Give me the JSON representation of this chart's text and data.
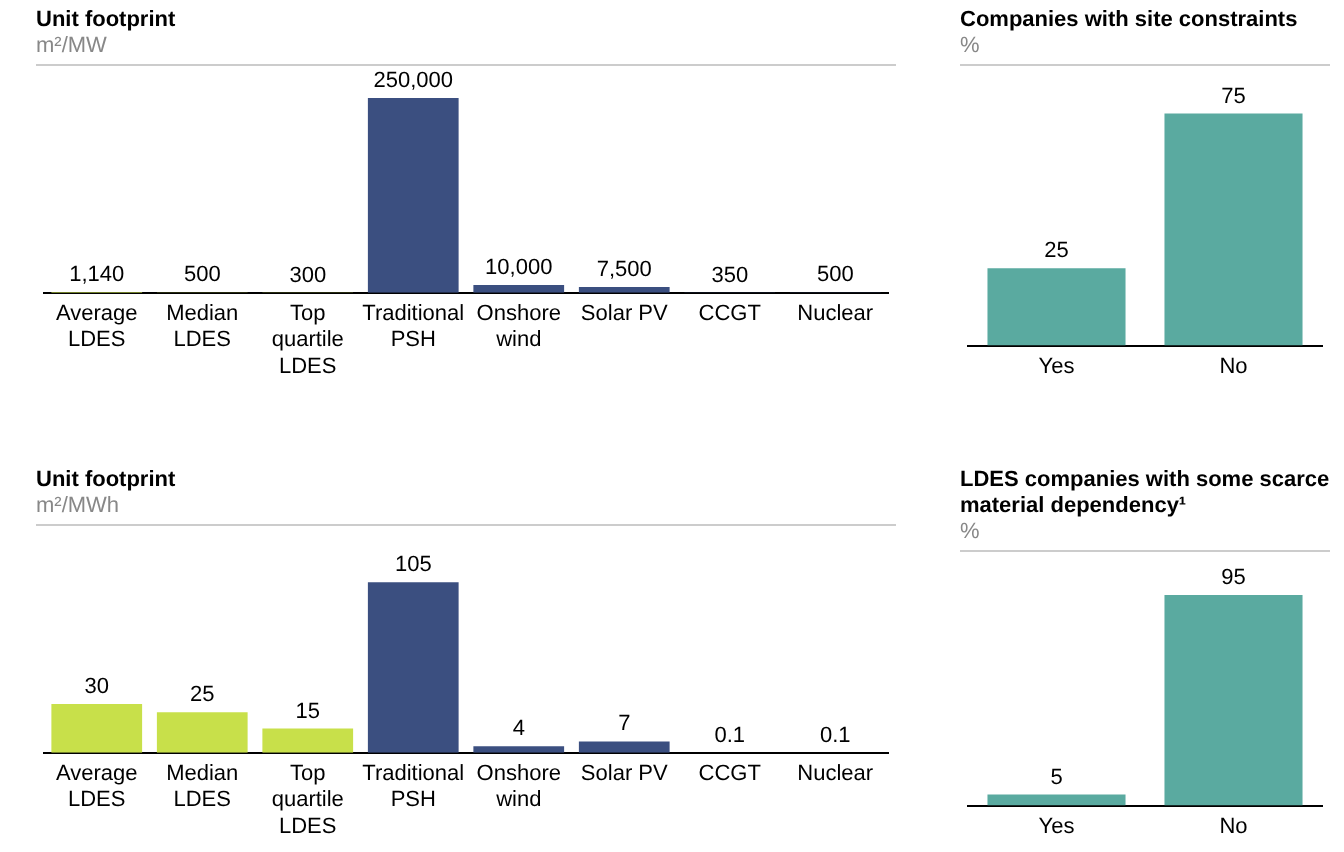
{
  "chart_data": [
    {
      "type": "bar",
      "title": "Unit footprint",
      "subtitle": "m²/MW",
      "categories": [
        "Average LDES",
        "Median LDES",
        "Top quartile LDES",
        "Traditional PSH",
        "Onshore wind",
        "Solar PV",
        "CCGT",
        "Nuclear"
      ],
      "values": [
        1140,
        500,
        300,
        250000,
        10000,
        7500,
        350,
        500
      ],
      "value_labels": [
        "1,140",
        "500",
        "300",
        "250,000",
        "10,000",
        "7,500",
        "350",
        "500"
      ],
      "colors": [
        "#c8e04a",
        "#c8e04a",
        "#c8e04a",
        "#3b4f80",
        "#3b4f80",
        "#3b4f80",
        "#3b4f80",
        "#3b4f80"
      ],
      "tick_labels": "x"
    },
    {
      "type": "bar",
      "title": "Companies with site constraints",
      "subtitle": "%",
      "categories": [
        "Yes",
        "No"
      ],
      "values": [
        25,
        75
      ],
      "colors": [
        "#5aaaa0",
        "#5aaaa0"
      ],
      "data_labels": true,
      "tick_labels": "x"
    },
    {
      "type": "bar",
      "title": "Unit footprint",
      "subtitle": "m²/MWh",
      "categories": [
        "Average LDES",
        "Median LDES",
        "Top quartile LDES",
        "Traditional PSH",
        "Onshore wind",
        "Solar PV",
        "CCGT",
        "Nuclear"
      ],
      "values": [
        30,
        25,
        15,
        105,
        4,
        7,
        0.1,
        0.1
      ],
      "colors": [
        "#c8e04a",
        "#c8e04a",
        "#c8e04a",
        "#3b4f80",
        "#3b4f80",
        "#3b4f80",
        "#3b4f80",
        "#3b4f80"
      ],
      "data_labels": true,
      "tick_labels": "x"
    },
    {
      "type": "bar",
      "title": "LDES companies with some scarce material dependency¹",
      "subtitle": "%",
      "categories": [
        "Yes",
        "No"
      ],
      "values": [
        5,
        95
      ],
      "colors": [
        "#5aaaa0",
        "#5aaaa0"
      ],
      "data_labels": true,
      "tick_labels": "x"
    }
  ]
}
